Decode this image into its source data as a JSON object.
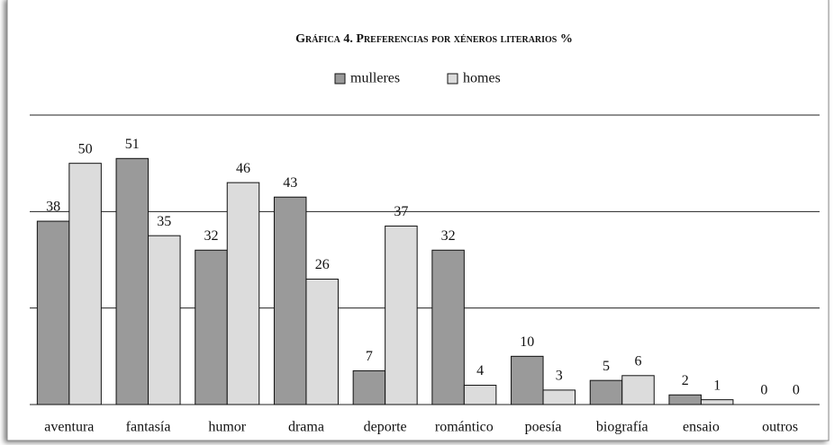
{
  "chart_data": {
    "type": "bar",
    "title": "Gráfica 4. Preferencias por xéneros literarios %",
    "categories": [
      "aventura",
      "fantasía",
      "humor",
      "drama",
      "deporte",
      "romántico",
      "poesía",
      "biografía",
      "ensaio",
      "outros"
    ],
    "series": [
      {
        "name": "mulleres",
        "color": "#9a9a9a",
        "values": [
          38,
          51,
          32,
          43,
          7,
          32,
          10,
          5,
          2,
          0
        ]
      },
      {
        "name": "homes",
        "color": "#dcdcdc",
        "values": [
          50,
          35,
          46,
          26,
          37,
          4,
          3,
          6,
          1,
          0
        ]
      }
    ],
    "ylim": [
      0,
      60
    ],
    "yticks": [
      0,
      20,
      40,
      60
    ],
    "grid": true
  }
}
